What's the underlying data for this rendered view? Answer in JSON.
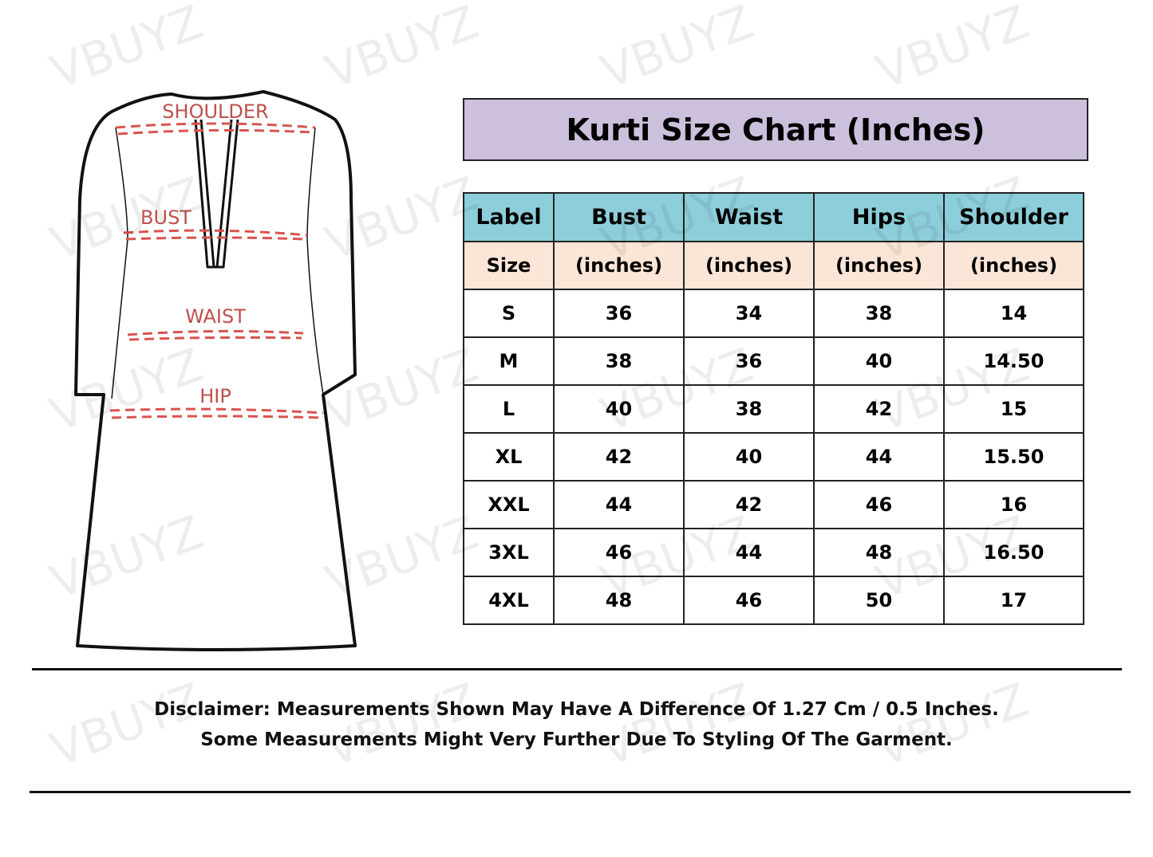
{
  "watermark": "VBUYZ",
  "diagram_labels": {
    "shoulder": "SHOULDER",
    "bust": "BUST",
    "waist": "WAIST",
    "hip": "HIP"
  },
  "title": "Kurti Size Chart (Inches)",
  "colors": {
    "title_bg": "#cdc0dd",
    "header_bg": "#8dcedb",
    "subheader_bg": "#fbe5d6",
    "measure_line": "#d9534f"
  },
  "table": {
    "headers": [
      "Label",
      "Bust",
      "Waist",
      "Hips",
      "Shoulder"
    ],
    "subheaders": [
      "Size",
      "(inches)",
      "(inches)",
      "(inches)",
      "(inches)"
    ],
    "rows": [
      [
        "S",
        "36",
        "34",
        "38",
        "14"
      ],
      [
        "M",
        "38",
        "36",
        "40",
        "14.50"
      ],
      [
        "L",
        "40",
        "38",
        "42",
        "15"
      ],
      [
        "XL",
        "42",
        "40",
        "44",
        "15.50"
      ],
      [
        "XXL",
        "44",
        "42",
        "46",
        "16"
      ],
      [
        "3XL",
        "46",
        "44",
        "48",
        "16.50"
      ],
      [
        "4XL",
        "48",
        "46",
        "50",
        "17"
      ]
    ]
  },
  "disclaimer": {
    "line1": "Disclaimer: Measurements Shown May Have A Difference Of 1.27 Cm / 0.5 Inches.",
    "line2": "Some Measurements Might Very Further Due To Styling Of The Garment."
  }
}
